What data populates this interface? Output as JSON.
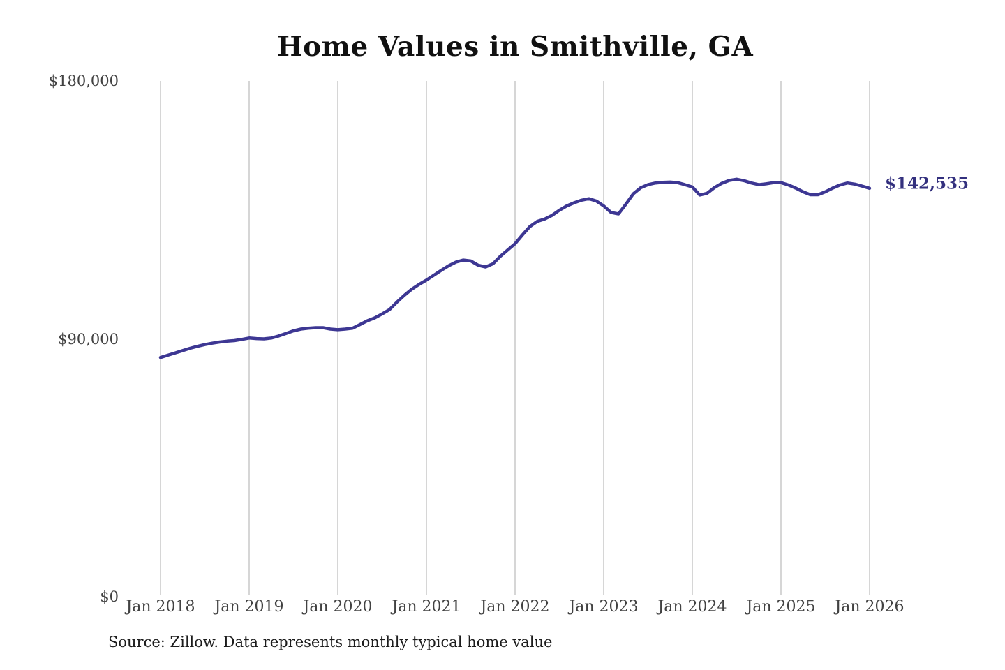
{
  "title": "Home Values in Smithville, GA",
  "end_label": "$142,535",
  "source_note": "Source: Zillow. Data represents monthly typical home value",
  "colors": {
    "line": "#3d3793",
    "end_label": "#33307e",
    "grid": "#c9c9c9",
    "tick_text": "#424242",
    "title_text": "#111111",
    "source_text": "#1c1c1c",
    "background": "#ffffff"
  },
  "chart_data": {
    "type": "line",
    "title": "Home Values in Smithville, GA",
    "xlabel": "",
    "ylabel": "",
    "ylim": [
      0,
      180000
    ],
    "y_ticks": [
      0,
      90000,
      180000
    ],
    "y_tick_labels": [
      "$0",
      "$90,000",
      "$180,000"
    ],
    "x_tick_labels": [
      "Jan 2018",
      "Jan 2019",
      "Jan 2020",
      "Jan 2021",
      "Jan 2022",
      "Jan 2023",
      "Jan 2024",
      "Jan 2025",
      "Jan 2026"
    ],
    "x_start": "2018-01",
    "x_interval": "monthly",
    "grid": "vertical-only",
    "legend": "none",
    "end_value": 142535,
    "series": [
      {
        "name": "Monthly typical home value ($)",
        "values": [
          83500,
          84300,
          85100,
          85900,
          86700,
          87400,
          88000,
          88500,
          88900,
          89200,
          89400,
          89800,
          90300,
          90100,
          90000,
          90300,
          91000,
          91900,
          92800,
          93400,
          93700,
          93900,
          93900,
          93400,
          93200,
          93400,
          93700,
          95000,
          96300,
          97300,
          98700,
          100200,
          102800,
          105200,
          107300,
          109000,
          110500,
          112200,
          113900,
          115500,
          116800,
          117500,
          117200,
          115700,
          115100,
          116200,
          118800,
          121000,
          123200,
          126300,
          129200,
          131000,
          131800,
          133100,
          134900,
          136400,
          137500,
          138400,
          138900,
          138100,
          136400,
          134100,
          133600,
          137000,
          140600,
          142700,
          143800,
          144400,
          144600,
          144700,
          144500,
          143800,
          143000,
          140200,
          140800,
          142800,
          144300,
          145300,
          145700,
          145200,
          144400,
          143800,
          144100,
          144500,
          144500,
          143700,
          142600,
          141300,
          140300,
          140300,
          141300,
          142600,
          143700,
          144400,
          144000,
          143300,
          142535
        ]
      }
    ]
  }
}
